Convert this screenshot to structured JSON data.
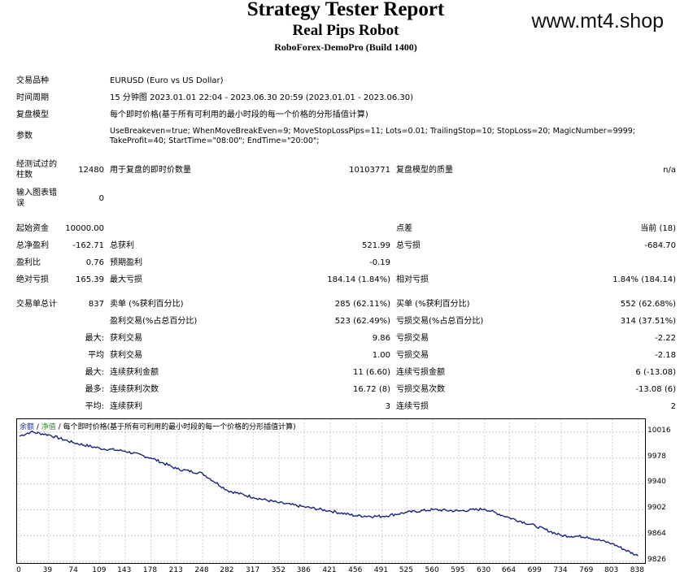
{
  "header": {
    "title": "Strategy Tester Report",
    "subtitle": "Real Pips Robot",
    "build": "RoboForex-DemoPro (Build 1400)",
    "site": "www.mt4.shop"
  },
  "info": {
    "symbol_label": "交易品种",
    "symbol_value": "EURUSD (Euro vs US Dollar)",
    "period_label": "时间周期",
    "period_value": "15 分钟图 2023.01.01 22:04 - 2023.06.30 20:59 (2023.01.01 - 2023.06.30)",
    "model_label": "复盘模型",
    "model_value": "每个即时价格(基于所有可利用的最小时段的每一个价格的分形插值计算)",
    "params_label": "参数",
    "params_line1": "UseBreakeven=true; WhenMoveBreakEven=9; MoveStopLossPips=11; Lots=0.01; TrailingStop=10; StopLoss=20; MagicNumber=9999;",
    "params_line2": "TakeProfit=40; StartTime=\"08:00\"; EndTime=\"20:00\";",
    "bars_label_1": "经测试过的",
    "bars_label_2": "柱数",
    "bars_value": "12480",
    "ticks_label": "用于复盘的即时价数量",
    "ticks_value": "10103771",
    "quality_label": "复盘模型的质量",
    "quality_value": "n/a",
    "errors_label_1": "输入图表错",
    "errors_label_2": "误",
    "errors_value": "0"
  },
  "stats": {
    "deposit_label": "起始资金",
    "deposit_value": "10000.00",
    "spread_label": "点差",
    "spread_value": "当前 (18)",
    "net_label": "总净盈利",
    "net_value": "-162.71",
    "gross_profit_label": "总获利",
    "gross_profit_value": "521.99",
    "gross_loss_label": "总亏损",
    "gross_loss_value": "-684.70",
    "pf_label": "盈利比",
    "pf_value": "0.76",
    "payoff_label": "预期盈利",
    "payoff_value": "-0.19",
    "abs_dd_label": "绝对亏损",
    "abs_dd_value": "165.39",
    "max_dd_label": "最大亏损",
    "max_dd_value": "184.14 (1.84%)",
    "rel_dd_label": "相对亏损",
    "rel_dd_value": "1.84% (184.14)",
    "trades_label": "交易单总计",
    "trades_value": "837",
    "short_label": "卖单 (%获利百分比)",
    "short_value": "285 (62.11%)",
    "long_label": "买单 (%获利百分比)",
    "long_value": "552 (62.68%)",
    "win_label": "盈利交易(%占总百分比)",
    "win_value": "523 (62.49%)",
    "loss_label": "亏损交易(%占总百分比)",
    "loss_value": "314 (37.51%)",
    "largest_prefix": "最大:",
    "largest_win_label": "获利交易",
    "largest_win_value": "9.86",
    "largest_loss_label": "亏损交易",
    "largest_loss_value": "-2.22",
    "avg_prefix": "平均",
    "avg_win_label": "获利交易",
    "avg_win_value": "1.00",
    "avg_loss_label": "亏损交易",
    "avg_loss_value": "-2.18",
    "max_prefix": "最大:",
    "max_cons_win_label": "连续获利金额",
    "max_cons_win_value": "11 (6.60)",
    "max_cons_loss_label": "连续亏损金额",
    "max_cons_loss_value": "6 (-13.08)",
    "maximal_prefix": "最多:",
    "maximal_cons_win_label": "连续获利次数",
    "maximal_cons_win_value": "16.72 (8)",
    "maximal_cons_loss_label": "亏损交易次数",
    "maximal_cons_loss_value": "-13.08 (6)",
    "avg2_prefix": "平均:",
    "avg_cons_win_label": "连续获利",
    "avg_cons_win_value": "3",
    "avg_cons_loss_label": "连续亏损",
    "avg_cons_loss_value": "2"
  },
  "chart_legend": {
    "balance": "余额",
    "sep1": " / ",
    "equity": "净值",
    "sep2": " / ",
    "model": "每个即时价格(基于所有可利用的最小时段的每一个价格的分形插值计算)"
  },
  "chart_data": {
    "type": "line",
    "x_ticks": [
      0,
      39,
      74,
      109,
      143,
      178,
      213,
      248,
      282,
      317,
      352,
      386,
      421,
      456,
      491,
      525,
      560,
      595,
      630,
      664,
      699,
      734,
      769,
      803,
      838
    ],
    "y_ticks": [
      9826,
      9864,
      9902,
      9940,
      9978,
      10016
    ],
    "ylim": [
      9826,
      10030
    ],
    "xlim": [
      0,
      842
    ],
    "series": [
      {
        "color": "#1a237e",
        "points": [
          [
            0,
            10010
          ],
          [
            15,
            10016
          ],
          [
            39,
            10012
          ],
          [
            74,
            10000
          ],
          [
            109,
            9992
          ],
          [
            143,
            9988
          ],
          [
            178,
            9978
          ],
          [
            213,
            9962
          ],
          [
            248,
            9955
          ],
          [
            282,
            9930
          ],
          [
            317,
            9920
          ],
          [
            352,
            9912
          ],
          [
            386,
            9906
          ],
          [
            421,
            9900
          ],
          [
            456,
            9893
          ],
          [
            491,
            9892
          ],
          [
            525,
            9898
          ],
          [
            560,
            9902
          ],
          [
            595,
            9900
          ],
          [
            630,
            9903
          ],
          [
            664,
            9890
          ],
          [
            699,
            9878
          ],
          [
            734,
            9864
          ],
          [
            769,
            9862
          ],
          [
            803,
            9852
          ],
          [
            838,
            9834
          ]
        ]
      }
    ]
  }
}
